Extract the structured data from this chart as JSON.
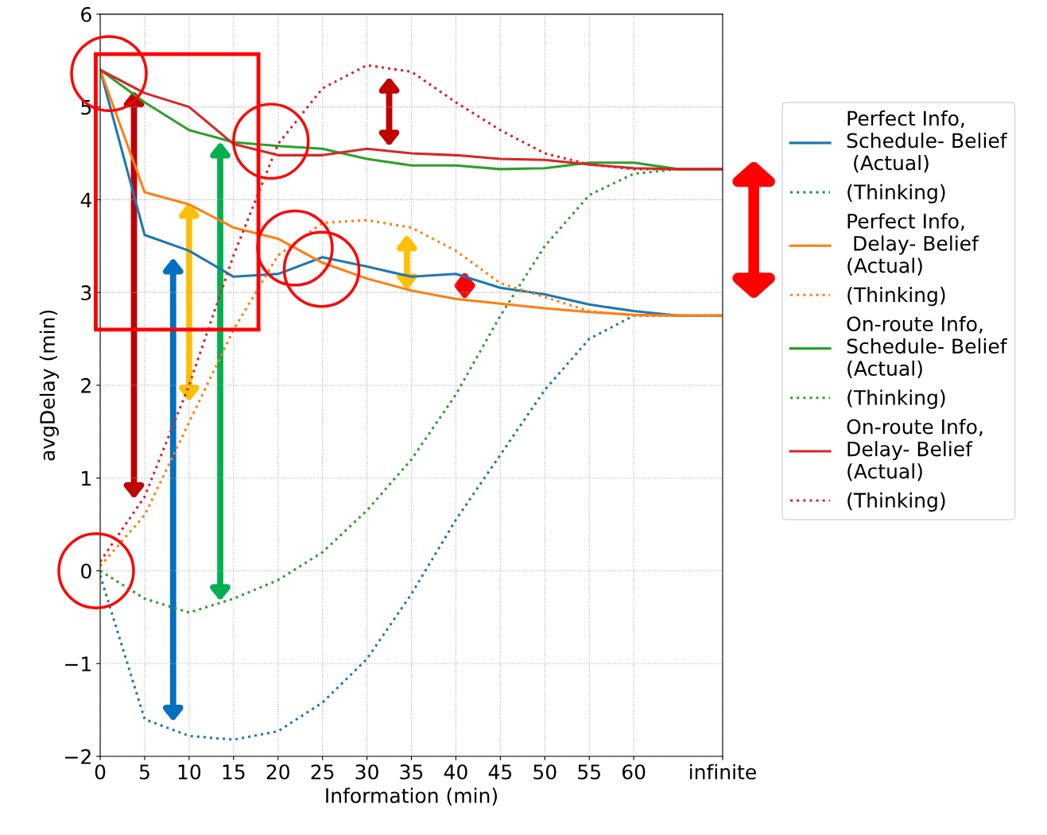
{
  "chart_data": {
    "type": "line",
    "xlabel": "Information (min)",
    "ylabel": "avgDelay (min)",
    "x": [
      0,
      5,
      10,
      15,
      20,
      25,
      30,
      35,
      40,
      45,
      50,
      55,
      60,
      65,
      70
    ],
    "xlim": [
      0,
      70
    ],
    "xticks": [
      0,
      5,
      10,
      15,
      20,
      25,
      30,
      35,
      40,
      45,
      50,
      55,
      60,
      {
        "value": 70,
        "label": "infinite"
      }
    ],
    "ylim": [
      -2,
      6
    ],
    "yticks": [
      -2,
      -1,
      0,
      1,
      2,
      3,
      4,
      5,
      6
    ],
    "grid": true,
    "legend": "right",
    "marker": "none",
    "series": [
      {
        "name": "Perfect Info,\nSchedule- Belief\n (Actual)",
        "color": "#1f77b4",
        "line_style": "solid",
        "values": [
          5.4,
          3.62,
          3.45,
          3.17,
          3.2,
          3.38,
          3.28,
          3.17,
          3.2,
          3.05,
          2.98,
          2.87,
          2.8,
          2.75,
          2.75
        ]
      },
      {
        "name": "(Thinking)",
        "color": "#1f77b4",
        "line_style": "dotted",
        "values": [
          -0.05,
          -1.6,
          -1.78,
          -1.82,
          -1.73,
          -1.42,
          -0.95,
          -0.25,
          0.55,
          1.25,
          1.95,
          2.5,
          2.75,
          2.75,
          2.75
        ]
      },
      {
        "name": "Perfect Info,\n Delay- Belief\n(Actual)",
        "color": "#ff7f0e",
        "line_style": "solid",
        "values": [
          5.4,
          4.08,
          3.95,
          3.7,
          3.58,
          3.32,
          3.15,
          3.02,
          2.93,
          2.88,
          2.83,
          2.79,
          2.76,
          2.75,
          2.75
        ]
      },
      {
        "name": "(Thinking)",
        "color": "#ff7f0e",
        "line_style": "dotted",
        "values": [
          0.05,
          0.6,
          1.6,
          2.6,
          3.4,
          3.75,
          3.78,
          3.7,
          3.45,
          3.1,
          2.95,
          2.8,
          2.75,
          2.75,
          2.75
        ]
      },
      {
        "name": "On-route Info,\nSchedule- Belief\n(Actual)",
        "color": "#2ca02c",
        "line_style": "solid",
        "values": [
          5.4,
          5.05,
          4.75,
          4.62,
          4.58,
          4.55,
          4.44,
          4.37,
          4.37,
          4.33,
          4.34,
          4.4,
          4.4,
          4.33,
          4.33
        ]
      },
      {
        "name": "(Thinking)",
        "color": "#2ca02c",
        "line_style": "dotted",
        "values": [
          0.0,
          -0.3,
          -0.45,
          -0.3,
          -0.1,
          0.2,
          0.65,
          1.2,
          1.9,
          2.75,
          3.5,
          4.05,
          4.28,
          4.33,
          4.33
        ]
      },
      {
        "name": "On-route Info,\nDelay- Belief\n(Actual)",
        "color": "#d62728",
        "line_style": "solid",
        "values": [
          5.4,
          5.15,
          5.0,
          4.6,
          4.48,
          4.48,
          4.55,
          4.5,
          4.48,
          4.44,
          4.43,
          4.38,
          4.34,
          4.33,
          4.33
        ]
      },
      {
        "name": "(Thinking)",
        "color": "#d62728",
        "line_style": "dotted",
        "values": [
          0.1,
          0.8,
          2.0,
          3.4,
          4.6,
          5.2,
          5.45,
          5.38,
          5.05,
          4.75,
          4.5,
          4.38,
          4.33,
          4.33,
          4.33
        ]
      }
    ]
  }
}
